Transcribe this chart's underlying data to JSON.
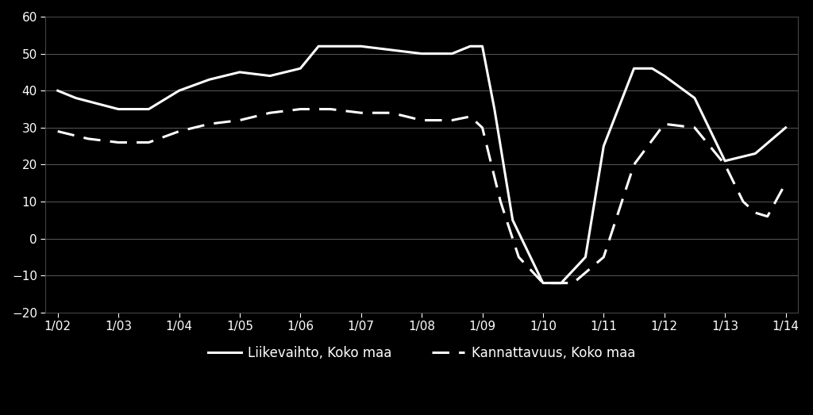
{
  "background_color": "#000000",
  "text_color": "#ffffff",
  "grid_color": "#666666",
  "line_color": "#ffffff",
  "ylim": [
    -20,
    60
  ],
  "yticks": [
    -20,
    -10,
    0,
    10,
    20,
    30,
    40,
    50,
    60
  ],
  "xtick_labels": [
    "1/02",
    "1/03",
    "1/04",
    "1/05",
    "1/06",
    "1/07",
    "1/08",
    "1/09",
    "1/10",
    "1/11",
    "1/12",
    "1/13",
    "1/14"
  ],
  "legend_labels": [
    "Liikevaihto, Koko maa",
    "Kannattavuus, Koko maa"
  ],
  "liikevaihto_x": [
    0,
    0.3,
    1.0,
    1.5,
    2.0,
    2.5,
    3.0,
    3.5,
    4.0,
    4.3,
    4.7,
    5.0,
    5.5,
    6.0,
    6.5,
    6.8,
    7.0,
    7.2,
    7.5,
    8.0,
    8.3,
    8.7,
    9.0,
    9.5,
    9.8,
    10.0,
    10.5,
    11.0,
    11.5,
    12.0
  ],
  "liikevaihto_y": [
    40,
    38,
    35,
    35,
    40,
    43,
    45,
    44,
    46,
    52,
    52,
    52,
    51,
    50,
    50,
    52,
    52,
    35,
    5,
    -12,
    -12,
    -5,
    25,
    46,
    46,
    44,
    38,
    21,
    23,
    30
  ],
  "kannattavuus_x": [
    0,
    0.5,
    1.0,
    1.5,
    2.0,
    2.5,
    3.0,
    3.5,
    4.0,
    4.5,
    5.0,
    5.5,
    6.0,
    6.5,
    6.8,
    7.0,
    7.3,
    7.6,
    8.0,
    8.5,
    9.0,
    9.2,
    9.5,
    10.0,
    10.5,
    11.0,
    11.3,
    11.5,
    11.7,
    12.0
  ],
  "kannattavuus_y": [
    29,
    27,
    26,
    26,
    29,
    31,
    32,
    34,
    35,
    35,
    34,
    34,
    32,
    32,
    33,
    30,
    10,
    -5,
    -12,
    -12,
    -5,
    5,
    20,
    31,
    30,
    20,
    10,
    7,
    6,
    15
  ]
}
